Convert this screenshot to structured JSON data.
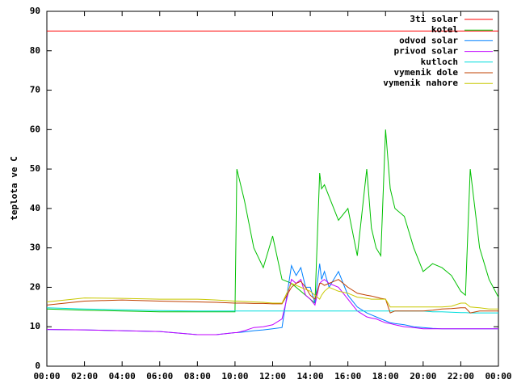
{
  "chart_data": {
    "type": "line",
    "ylabel": "teplota ve C",
    "x": [
      0,
      2,
      4,
      6,
      8,
      9,
      10,
      10.1,
      10.5,
      11,
      11.5,
      12,
      12.5,
      13,
      13.25,
      13.5,
      13.75,
      14,
      14.25,
      14.5,
      14.6,
      14.75,
      15,
      15.5,
      16,
      16.5,
      17,
      17.25,
      17.5,
      17.75,
      18,
      18.25,
      18.5,
      19,
      19.5,
      20,
      20.5,
      21,
      21.5,
      22,
      22.25,
      22.5,
      23,
      23.5,
      24
    ],
    "series": [
      {
        "name": "3ti solar",
        "color": "#ff0000",
        "values": [
          85,
          85,
          85,
          85,
          85,
          85,
          85,
          85,
          85,
          85,
          85,
          85,
          85,
          85,
          85,
          85,
          85,
          85,
          85,
          85,
          85,
          85,
          85,
          85,
          85,
          85,
          85,
          85,
          85,
          85,
          85,
          85,
          85,
          85,
          85,
          85,
          85,
          85,
          85,
          85,
          85,
          85,
          85,
          85,
          85
        ]
      },
      {
        "name": "kotel",
        "color": "#00c000",
        "values": [
          14.5,
          14.2,
          14,
          13.8,
          13.8,
          13.8,
          13.8,
          50,
          42,
          30,
          25,
          33,
          22,
          21,
          20,
          19,
          18,
          17,
          16,
          49,
          45,
          46,
          43,
          37,
          40,
          28,
          50,
          35,
          30,
          28,
          60,
          45,
          40,
          38,
          30,
          24,
          26,
          25,
          23,
          19,
          18,
          50,
          30,
          22,
          17.5
        ]
      },
      {
        "name": "odvod solar",
        "color": "#0080ff",
        "values": [
          9.3,
          9.2,
          9,
          8.8,
          8,
          8,
          8.5,
          8.5,
          8.7,
          9,
          9.2,
          9.5,
          9.8,
          25.5,
          23,
          25,
          20,
          20,
          16,
          26,
          22,
          24,
          20,
          24,
          18,
          15,
          13.5,
          13,
          12.5,
          12,
          11.5,
          11,
          10.8,
          10.5,
          10,
          9.8,
          9.6,
          9.5,
          9.5,
          9.5,
          9.5,
          9.5,
          9.5,
          9.5,
          9.5
        ]
      },
      {
        "name": "privod solar",
        "color": "#c000ff",
        "values": [
          9.3,
          9.2,
          9,
          8.8,
          8,
          8,
          8.5,
          8.5,
          9,
          9.8,
          10,
          10.5,
          12,
          22,
          21,
          22,
          18,
          17,
          15.5,
          21,
          21.5,
          22,
          21,
          20,
          17,
          14,
          12.5,
          12.2,
          12,
          11.5,
          11,
          10.8,
          10.5,
          10,
          9.8,
          9.5,
          9.5,
          9.5,
          9.5,
          9.5,
          9.5,
          9.5,
          9.5,
          9.5,
          9.5
        ]
      },
      {
        "name": "kutloch",
        "color": "#00dddd",
        "values": [
          14.8,
          14.5,
          14.3,
          14.1,
          14,
          14,
          14,
          14,
          14,
          14,
          14,
          14,
          14,
          14,
          14,
          14,
          14,
          14,
          14,
          14,
          14,
          14,
          14,
          14,
          14,
          14,
          14,
          14,
          14,
          14,
          14,
          14,
          14,
          14,
          14,
          14,
          13.8,
          13.8,
          13.7,
          13.6,
          13.6,
          13.5,
          13.5,
          13.5,
          13.5
        ]
      },
      {
        "name": "vymenik dole",
        "color": "#c04000",
        "values": [
          15.5,
          16.5,
          16.8,
          16.5,
          16.3,
          16.2,
          16,
          16,
          16,
          15.9,
          15.9,
          15.8,
          15.8,
          20,
          21,
          21.5,
          20,
          18,
          17,
          21,
          21,
          20.5,
          21,
          22,
          20,
          18.5,
          18,
          17.8,
          17.5,
          17.2,
          17,
          13.5,
          14,
          14,
          14,
          14,
          14.2,
          14.5,
          14.6,
          14.8,
          14.8,
          13.5,
          14,
          14,
          14
        ]
      },
      {
        "name": "vymenik nahore",
        "color": "#c8c800",
        "values": [
          16.3,
          17.3,
          17.2,
          17,
          17,
          16.8,
          16.5,
          16.5,
          16.4,
          16.3,
          16.2,
          16,
          16,
          21,
          20.5,
          20,
          19.5,
          19,
          18,
          17,
          18,
          19,
          20,
          19,
          18.5,
          17.5,
          17.2,
          17,
          17,
          17,
          17,
          15,
          15,
          15,
          15,
          15,
          15,
          15,
          15.2,
          16,
          16,
          15,
          14.8,
          14.5,
          14.5
        ]
      }
    ],
    "xlim": [
      0,
      24
    ],
    "xticks": [
      {
        "value": 0,
        "label": "00:00"
      },
      {
        "value": 2,
        "label": "02:00"
      },
      {
        "value": 4,
        "label": "04:00"
      },
      {
        "value": 6,
        "label": "06:00"
      },
      {
        "value": 8,
        "label": "08:00"
      },
      {
        "value": 10,
        "label": "10:00"
      },
      {
        "value": 12,
        "label": "12:00"
      },
      {
        "value": 14,
        "label": "14:00"
      },
      {
        "value": 16,
        "label": "16:00"
      },
      {
        "value": 18,
        "label": "18:00"
      },
      {
        "value": 20,
        "label": "20:00"
      },
      {
        "value": 22,
        "label": "22:00"
      },
      {
        "value": 24,
        "label": "00:00"
      }
    ],
    "ylim": [
      0,
      90
    ],
    "yticks": [
      0,
      10,
      20,
      30,
      40,
      50,
      60,
      70,
      80,
      90
    ],
    "legend": "top-right"
  }
}
